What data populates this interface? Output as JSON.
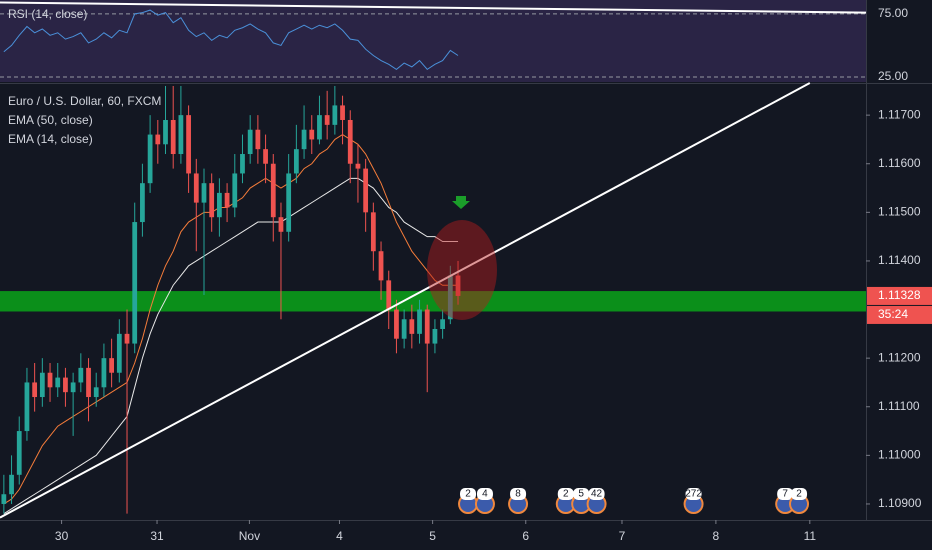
{
  "chart_data": {
    "type": "candlestick",
    "title": "Euro / U.S. Dollar, 60, FXCM",
    "up_color": "#26a69a",
    "down_color": "#ef5350",
    "open": [
      1.109,
      1.1092,
      1.1096,
      1.1105,
      1.1115,
      1.1112,
      1.1117,
      1.1114,
      1.1116,
      1.1113,
      1.1115,
      1.1118,
      1.1112,
      1.1114,
      1.112,
      1.1117,
      1.1125,
      1.1123,
      1.1148,
      1.1156,
      1.1166,
      1.1164,
      1.1169,
      1.1162,
      1.117,
      1.1158,
      1.1152,
      1.1156,
      1.1149,
      1.1154,
      1.1151,
      1.1158,
      1.1162,
      1.1167,
      1.1163,
      1.116,
      1.1149,
      1.1146,
      1.1158,
      1.1163,
      1.1167,
      1.1165,
      1.117,
      1.1168,
      1.1172,
      1.1169,
      1.116,
      1.1159,
      1.115,
      1.1142,
      1.1136,
      1.113,
      1.1124,
      1.1128,
      1.1125,
      1.113,
      1.1123,
      1.1126,
      1.1128,
      1.1137
    ],
    "high": [
      1.1096,
      1.11,
      1.1108,
      1.1118,
      1.1119,
      1.112,
      1.1119,
      1.1119,
      1.1118,
      1.1117,
      1.1121,
      1.112,
      1.1117,
      1.1123,
      1.1124,
      1.1128,
      1.113,
      1.1152,
      1.116,
      1.117,
      1.1169,
      1.1176,
      1.1176,
      1.1176,
      1.1172,
      1.1161,
      1.1159,
      1.1158,
      1.1157,
      1.1156,
      1.1162,
      1.1166,
      1.117,
      1.117,
      1.1166,
      1.1162,
      1.1152,
      1.1162,
      1.1168,
      1.1172,
      1.117,
      1.1174,
      1.1175,
      1.1176,
      1.1174,
      1.1171,
      1.1164,
      1.1161,
      1.1152,
      1.1144,
      1.1138,
      1.1132,
      1.113,
      1.1131,
      1.1132,
      1.1131,
      1.1128,
      1.113,
      1.1139,
      1.114
    ],
    "low": [
      1.1088,
      1.109,
      1.1094,
      1.1103,
      1.1109,
      1.111,
      1.1111,
      1.1112,
      1.111,
      1.1104,
      1.1113,
      1.1107,
      1.111,
      1.1112,
      1.1114,
      1.1115,
      1.1088,
      1.1121,
      1.1145,
      1.1154,
      1.116,
      1.1162,
      1.1159,
      1.116,
      1.1154,
      1.1142,
      1.1133,
      1.1146,
      1.1145,
      1.1148,
      1.1149,
      1.1156,
      1.116,
      1.116,
      1.1156,
      1.1144,
      1.1128,
      1.1144,
      1.1156,
      1.1161,
      1.1162,
      1.1164,
      1.1165,
      1.1166,
      1.1164,
      1.1156,
      1.1152,
      1.1146,
      1.1138,
      1.1132,
      1.1126,
      1.1121,
      1.1122,
      1.1122,
      1.1123,
      1.1113,
      1.1121,
      1.1124,
      1.1127,
      1.1131
    ],
    "close": [
      1.1092,
      1.1096,
      1.1105,
      1.1115,
      1.1112,
      1.1117,
      1.1114,
      1.1116,
      1.1113,
      1.1115,
      1.1118,
      1.1112,
      1.1114,
      1.112,
      1.1117,
      1.1125,
      1.1123,
      1.1148,
      1.1156,
      1.1166,
      1.1164,
      1.1169,
      1.1162,
      1.117,
      1.1158,
      1.1152,
      1.1156,
      1.1149,
      1.1154,
      1.1151,
      1.1158,
      1.1162,
      1.1167,
      1.1163,
      1.116,
      1.1149,
      1.1146,
      1.1158,
      1.1163,
      1.1167,
      1.1165,
      1.117,
      1.1168,
      1.1172,
      1.1169,
      1.116,
      1.1159,
      1.115,
      1.1142,
      1.1136,
      1.113,
      1.1124,
      1.1128,
      1.1125,
      1.113,
      1.1123,
      1.1126,
      1.1128,
      1.1137,
      1.11328
    ],
    "series": [
      {
        "name": "EMA (50, close)",
        "color": "#e8e8e8",
        "values": [
          1.1088,
          1.1089,
          1.109,
          1.1091,
          1.1092,
          1.1093,
          1.1094,
          1.1095,
          1.1096,
          1.1097,
          1.1098,
          1.1099,
          1.11,
          1.1102,
          1.1104,
          1.1106,
          1.1108,
          1.1114,
          1.112,
          1.1125,
          1.1129,
          1.1132,
          1.1135,
          1.1137,
          1.1139,
          1.114,
          1.1141,
          1.1142,
          1.1143,
          1.1144,
          1.1145,
          1.1146,
          1.1147,
          1.1148,
          1.1148,
          1.1148,
          1.1148,
          1.1149,
          1.115,
          1.1151,
          1.1152,
          1.1153,
          1.1154,
          1.1155,
          1.1156,
          1.1157,
          1.1157,
          1.1156,
          1.1155,
          1.1153,
          1.1151,
          1.115,
          1.1148,
          1.1147,
          1.1146,
          1.1145,
          1.1145,
          1.1144,
          1.1144,
          1.1144
        ]
      },
      {
        "name": "EMA (14, close)",
        "color": "#f57c3a",
        "values": [
          1.109,
          1.1091,
          1.1093,
          1.1096,
          1.1099,
          1.1102,
          1.1104,
          1.1106,
          1.1107,
          1.1108,
          1.1109,
          1.111,
          1.1111,
          1.1112,
          1.1113,
          1.1114,
          1.1115,
          1.1119,
          1.1124,
          1.113,
          1.1135,
          1.1139,
          1.1142,
          1.1146,
          1.1148,
          1.1149,
          1.115,
          1.115,
          1.1151,
          1.1151,
          1.1152,
          1.1153,
          1.1155,
          1.1156,
          1.1157,
          1.1156,
          1.1155,
          1.1156,
          1.1157,
          1.1159,
          1.116,
          1.1162,
          1.1163,
          1.1165,
          1.1166,
          1.1165,
          1.1164,
          1.1162,
          1.1159,
          1.1156,
          1.1152,
          1.1148,
          1.1145,
          1.1142,
          1.114,
          1.1138,
          1.1136,
          1.1135,
          1.1135,
          1.1135
        ]
      }
    ],
    "xlim": [
      -0.5,
      112
    ],
    "xticks": [
      {
        "value": 7.5,
        "label": "30"
      },
      {
        "value": 19.9,
        "label": "31"
      },
      {
        "value": 31.9,
        "label": "Nov"
      },
      {
        "value": 43.6,
        "label": "4"
      },
      {
        "value": 55.7,
        "label": "5"
      },
      {
        "value": 67.8,
        "label": "6"
      },
      {
        "value": 80.3,
        "label": "7"
      },
      {
        "value": 92.5,
        "label": "8"
      },
      {
        "value": 104.7,
        "label": "11"
      }
    ],
    "ylim": [
      1.10867,
      1.11762
    ],
    "yticks": [
      {
        "value": 1.117,
        "label": "1.11700"
      },
      {
        "value": 1.116,
        "label": "1.11600"
      },
      {
        "value": 1.115,
        "label": "1.11500"
      },
      {
        "value": 1.114,
        "label": "1.11400"
      },
      {
        "value": 1.112,
        "label": "1.11200"
      },
      {
        "value": 1.111,
        "label": "1.11100"
      },
      {
        "value": 1.11,
        "label": "1.11000"
      },
      {
        "value": 1.109,
        "label": "1.10900"
      }
    ],
    "grid": false,
    "zone": {
      "values": [
        1.11296,
        1.11338
      ],
      "color": "#0b8f1a"
    },
    "trendline": {
      "x": [
        -0.5,
        104.7
      ],
      "values": [
        1.10872,
        1.11766
      ],
      "color": "#ffffff"
    },
    "countdown": "35:24",
    "events": [
      {
        "label": "2",
        "x": 60.3
      },
      {
        "label": "4",
        "x": 62.5
      },
      {
        "label": "8",
        "x": 66.8
      },
      {
        "label": "2",
        "x": 73.0
      },
      {
        "label": "5",
        "x": 75.0
      },
      {
        "label": "42",
        "x": 77.0
      },
      {
        "label": "272",
        "x": 89.6
      },
      {
        "label": "7",
        "x": 101.5
      },
      {
        "label": "2",
        "x": 103.3
      }
    ],
    "rsi": {
      "name": "RSI (14, close)",
      "color": "#4a90d9",
      "values": [
        45,
        50,
        58,
        65,
        60,
        63,
        58,
        60,
        55,
        57,
        60,
        52,
        55,
        60,
        56,
        62,
        60,
        75,
        76,
        78,
        74,
        76,
        68,
        72,
        62,
        57,
        60,
        54,
        58,
        56,
        62,
        64,
        67,
        63,
        60,
        52,
        50,
        60,
        63,
        66,
        63,
        66,
        64,
        67,
        62,
        55,
        54,
        47,
        42,
        38,
        35,
        31,
        36,
        33,
        38,
        31,
        35,
        38,
        46,
        42
      ],
      "ylim": [
        21,
        86
      ],
      "yticks": [
        {
          "value": 75,
          "label": "75.00"
        },
        {
          "value": 25,
          "label": "25.00"
        }
      ],
      "trendline": {
        "x": [
          -0.5,
          112
        ],
        "values": [
          84,
          76
        ]
      }
    }
  }
}
